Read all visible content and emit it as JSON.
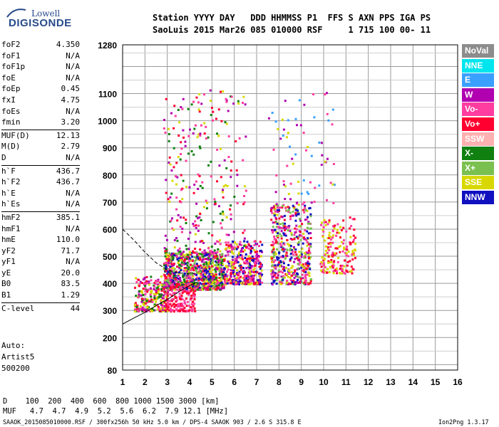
{
  "logo": {
    "line1": "Lowell",
    "line2": "DIGISONDE"
  },
  "header": {
    "row1": "Station YYYY DAY   DDD HHMMSS P1  FFS S AXN PPS IGA PS",
    "row2": "SaoLuis 2015 Mar26 085 010000 RSF     1 715 100 00- 11"
  },
  "params": [
    {
      "key": "foF2",
      "value": "4.350"
    },
    {
      "key": "foF1",
      "value": "N/A"
    },
    {
      "key": "foF1p",
      "value": "N/A"
    },
    {
      "key": "foE",
      "value": "N/A"
    },
    {
      "key": "foEp",
      "value": "0.45"
    },
    {
      "key": "fxI",
      "value": "4.75"
    },
    {
      "key": "foEs",
      "value": "N/A"
    },
    {
      "key": "fmin",
      "value": "3.20"
    },
    {
      "key": "MUF(D)",
      "value": "12.13"
    },
    {
      "key": "M(D)",
      "value": "2.79"
    },
    {
      "key": "D",
      "value": "N/A"
    },
    {
      "key": "h`F",
      "value": "436.7"
    },
    {
      "key": "h`F2",
      "value": "436.7"
    },
    {
      "key": "h`E",
      "value": "N/A"
    },
    {
      "key": "h`Es",
      "value": "N/A"
    },
    {
      "key": "hmF2",
      "value": "385.1"
    },
    {
      "key": "hmF1",
      "value": "N/A"
    },
    {
      "key": "hmE",
      "value": "110.0"
    },
    {
      "key": "yF2",
      "value": "71.7"
    },
    {
      "key": "yF1",
      "value": "N/A"
    },
    {
      "key": "yE",
      "value": "20.0"
    },
    {
      "key": "B0",
      "value": "83.5"
    },
    {
      "key": "B1",
      "value": "1.29"
    },
    {
      "key": "C-level",
      "value": "44"
    }
  ],
  "auto": {
    "label": "Auto:",
    "artist": "Artist5",
    "code": "500200"
  },
  "legend": [
    {
      "label": "NoVal",
      "color": "#8c8c8c"
    },
    {
      "label": "NNE",
      "color": "#00e5ee"
    },
    {
      "label": "E",
      "color": "#3aa0ff"
    },
    {
      "label": "W",
      "color": "#b000b0"
    },
    {
      "label": "Vo-",
      "color": "#ff3ca0"
    },
    {
      "label": "Vo+",
      "color": "#ff0030"
    },
    {
      "label": "SSW",
      "color": "#ffb0b0"
    },
    {
      "label": "X-",
      "color": "#108010"
    },
    {
      "label": "X+",
      "color": "#7ac050"
    },
    {
      "label": "SSE",
      "color": "#d8d800"
    },
    {
      "label": "NNW",
      "color": "#1010c0"
    }
  ],
  "footer": {
    "row1": "D    100  200  400  600  800 1000 1500 3000 [km]",
    "row2": "MUF   4.7  4.7  4.9  5.2  5.6  6.2  7.9 12.1 [MHz]",
    "row3": "SAAOK_2015085010000.RSF / 300fx256h 50 kHz 5.0 km / DPS-4 SAAOK 903 / 2.6 S 315.8 E",
    "version": "Ion2Png 1.3.17"
  },
  "chart_data": {
    "type": "scatter",
    "xlim": [
      1,
      16
    ],
    "ylim": [
      80,
      1280
    ],
    "x_ticks": [
      1,
      2,
      3,
      4,
      5,
      6,
      7,
      8,
      9,
      10,
      11,
      12,
      13,
      14,
      15,
      16
    ],
    "y_ticks": [
      80,
      200,
      300,
      400,
      500,
      600,
      700,
      800,
      900,
      1000,
      1100,
      1280
    ],
    "grid": true,
    "clusters": [
      {
        "f": [
          1.5,
          3.0
        ],
        "h": [
          300,
          430
        ],
        "density": 260,
        "colors": [
          "#ff3ca0",
          "#ff0030",
          "#d8d800",
          "#b000b0",
          "#108010"
        ]
      },
      {
        "f": [
          2.8,
          5.5
        ],
        "h": [
          380,
          520
        ],
        "density": 900,
        "colors": [
          "#d8d800",
          "#ff3ca0",
          "#ff0030",
          "#b000b0",
          "#7ac050",
          "#108010",
          "#1010c0"
        ]
      },
      {
        "f": [
          5.5,
          7.2
        ],
        "h": [
          400,
          560
        ],
        "density": 380,
        "colors": [
          "#ff3ca0",
          "#ff0030",
          "#d8d800",
          "#b000b0",
          "#1010c0"
        ]
      },
      {
        "f": [
          7.6,
          9.4
        ],
        "h": [
          400,
          700
        ],
        "density": 520,
        "colors": [
          "#ff3ca0",
          "#ff0030",
          "#d8d800",
          "#b000b0",
          "#1010c0",
          "#7ac050"
        ]
      },
      {
        "f": [
          9.8,
          11.4
        ],
        "h": [
          440,
          650
        ],
        "density": 180,
        "colors": [
          "#d8d800",
          "#ff3ca0",
          "#ff0030"
        ]
      },
      {
        "f": [
          2.8,
          6.5
        ],
        "h": [
          520,
          1120
        ],
        "density": 260,
        "colors": [
          "#d8d800",
          "#ff3ca0",
          "#b000b0",
          "#ff0030",
          "#108010"
        ]
      },
      {
        "f": [
          7.5,
          10.5
        ],
        "h": [
          700,
          1110
        ],
        "density": 70,
        "colors": [
          "#d8d800",
          "#ff3ca0",
          "#b000b0",
          "#3aa0ff"
        ]
      },
      {
        "f": [
          2.9,
          4.2
        ],
        "h": [
          300,
          400
        ],
        "density": 160,
        "colors": [
          "#ff3ca0",
          "#ff0030"
        ]
      }
    ],
    "trace_solid": {
      "f": [
        1,
        1.5,
        2,
        2.5,
        3,
        3.5,
        4,
        4.35
      ],
      "h": [
        250,
        272,
        293,
        318,
        340,
        368,
        392,
        405
      ]
    },
    "trace_dashed": {
      "f": [
        1,
        1.5,
        2,
        2.5,
        3,
        3.5,
        4,
        4.35
      ],
      "h": [
        600,
        560,
        515,
        476,
        450,
        438,
        437,
        436
      ]
    }
  }
}
